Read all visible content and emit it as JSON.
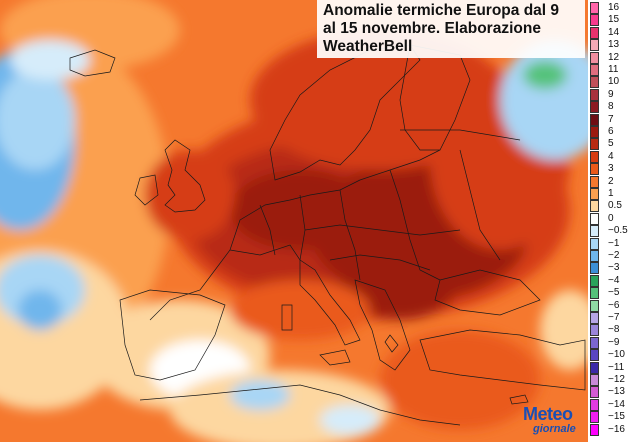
{
  "title": "Anomalie termiche Europa dal 9\nal 15 novembre. Elaborazione\nWeatherBell",
  "logo": {
    "line1": "Meteo",
    "line2": "giornale"
  },
  "legend": [
    {
      "label": "16",
      "color": "#ff66aa"
    },
    {
      "label": "15",
      "color": "#f73c8e"
    },
    {
      "label": "14",
      "color": "#e8326d"
    },
    {
      "label": "13",
      "color": "#f4a9b6"
    },
    {
      "label": "12",
      "color": "#f08fa0"
    },
    {
      "label": "11",
      "color": "#e06e7f"
    },
    {
      "label": "10",
      "color": "#c0505a"
    },
    {
      "label": "9",
      "color": "#a8323d"
    },
    {
      "label": "8",
      "color": "#8c1a22"
    },
    {
      "label": "7",
      "color": "#6e0e14"
    },
    {
      "label": "6",
      "color": "#9b1a10"
    },
    {
      "label": "5",
      "color": "#b82a12"
    },
    {
      "label": "4",
      "color": "#d63c12"
    },
    {
      "label": "3",
      "color": "#ea5a1a"
    },
    {
      "label": "2",
      "color": "#f5782e"
    },
    {
      "label": "1",
      "color": "#fba050"
    },
    {
      "label": "0.5",
      "color": "#fdd7a0"
    },
    {
      "label": "0",
      "color": "#ffffff"
    },
    {
      "label": "−0.5",
      "color": "#d6ecfa"
    },
    {
      "label": "−1",
      "color": "#a8d6f5"
    },
    {
      "label": "−2",
      "color": "#6fb6ec"
    },
    {
      "label": "−3",
      "color": "#3c8fd6"
    },
    {
      "label": "−4",
      "color": "#2aa35a"
    },
    {
      "label": "−5",
      "color": "#55c27a"
    },
    {
      "label": "−6",
      "color": "#8fd9a4"
    },
    {
      "label": "−7",
      "color": "#b7a6e6"
    },
    {
      "label": "−8",
      "color": "#9b86db"
    },
    {
      "label": "−9",
      "color": "#7b66cf"
    },
    {
      "label": "−10",
      "color": "#5a46c2"
    },
    {
      "label": "−11",
      "color": "#3b2aa8"
    },
    {
      "label": "−12",
      "color": "#c98ad9"
    },
    {
      "label": "−13",
      "color": "#d25bd2"
    },
    {
      "label": "−14",
      "color": "#e23ce0"
    },
    {
      "label": "−15",
      "color": "#f01ef0"
    },
    {
      "label": "−16",
      "color": "#ff00ff"
    }
  ]
}
